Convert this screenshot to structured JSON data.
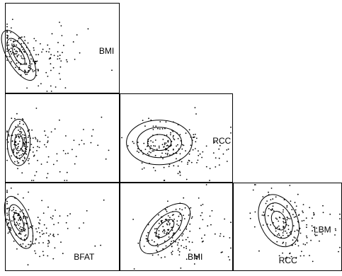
{
  "chart_data": {
    "type": "scatter",
    "title": "",
    "layout": "lower-triangular scatterplot matrix",
    "grid": false,
    "axes_ticks": false,
    "contour_levels": 3,
    "colors": {
      "point": "#000000",
      "ellipse": "#000000",
      "frame": "#000000",
      "background": "#ffffff"
    },
    "panels": [
      {
        "id": "panel-1",
        "row": 1,
        "col": 1,
        "labels": [
          {
            "text": "BMI",
            "position": "right-middle"
          }
        ],
        "ellipse": {
          "rx_outer": 0.2,
          "ry_outer": 0.62,
          "tilt_deg": -30
        },
        "point_count": 180
      },
      {
        "id": "panel-2",
        "row": 2,
        "col": 1,
        "labels": [],
        "ellipse": {
          "rx_outer": 0.2,
          "ry_outer": 0.52,
          "tilt_deg": 0
        },
        "point_count": 180
      },
      {
        "id": "panel-3",
        "row": 2,
        "col": 2,
        "labels": [
          {
            "text": "RCC",
            "position": "right-middle"
          }
        ],
        "ellipse": {
          "rx_outer": 0.58,
          "ry_outer": 0.5,
          "tilt_deg": 0
        },
        "point_count": 180
      },
      {
        "id": "panel-4",
        "row": 3,
        "col": 1,
        "labels": [
          {
            "text": "BFAT",
            "position": "bottom-right"
          }
        ],
        "ellipse": {
          "rx_outer": 0.2,
          "ry_outer": 0.62,
          "tilt_deg": -20
        },
        "point_count": 180
      },
      {
        "id": "panel-5",
        "row": 3,
        "col": 2,
        "labels": [
          {
            "text": "BMI",
            "position": "bottom-right"
          }
        ],
        "ellipse": {
          "rx_outer": 0.28,
          "ry_outer": 0.72,
          "tilt_deg": 45
        },
        "point_count": 180
      },
      {
        "id": "panel-6",
        "row": 3,
        "col": 3,
        "labels": [
          {
            "text": "LBM",
            "position": "right-middle"
          },
          {
            "text": "RCC",
            "position": "bottom-middle"
          }
        ],
        "ellipse": {
          "rx_outer": 0.34,
          "ry_outer": 0.62,
          "tilt_deg": -25
        },
        "point_count": 170
      }
    ]
  }
}
